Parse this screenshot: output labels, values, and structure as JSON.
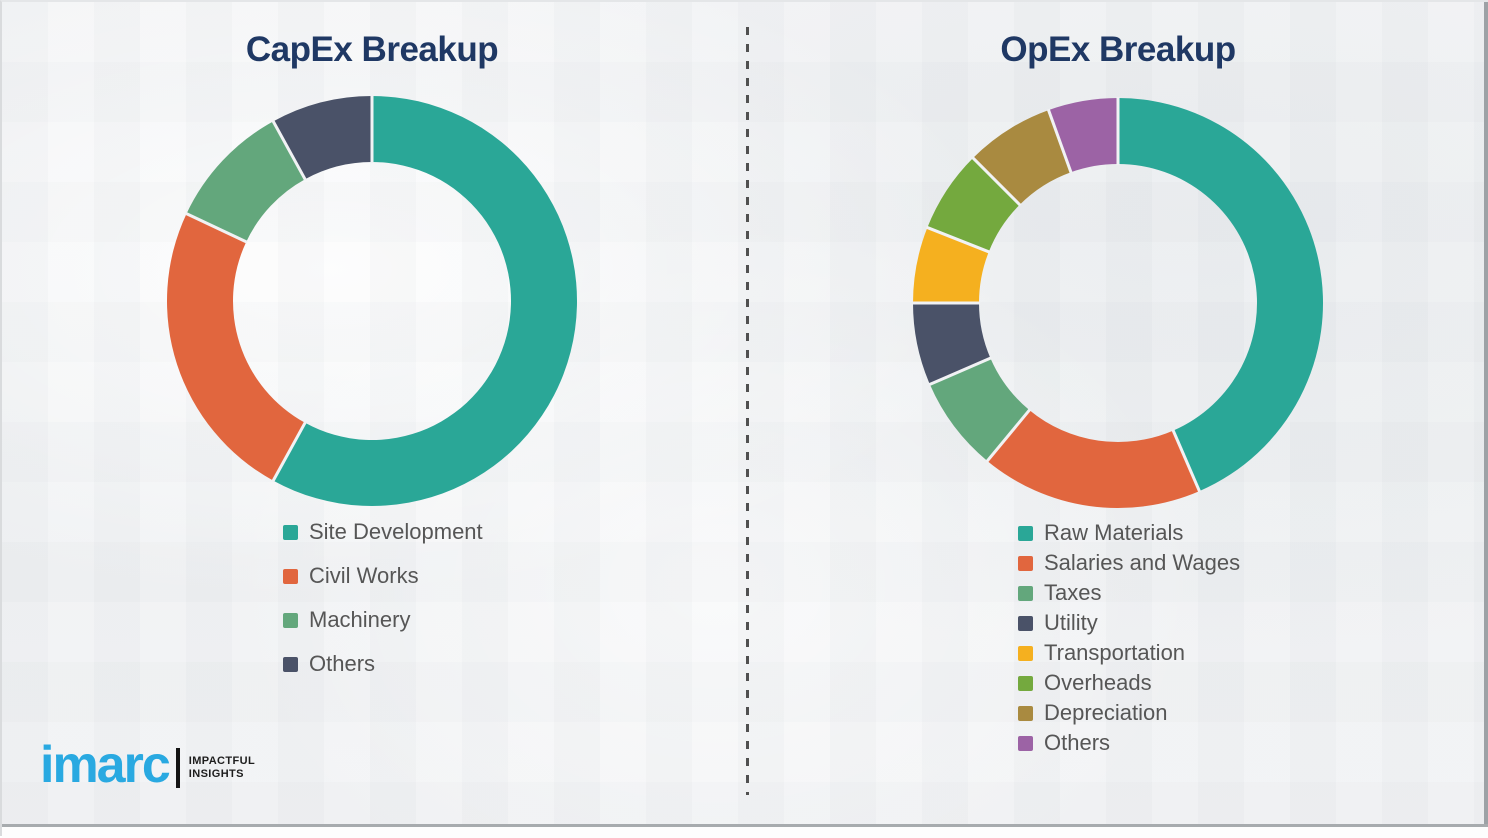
{
  "chart_data": [
    {
      "type": "pie",
      "subtype": "donut",
      "title": "CapEx Breakup",
      "categories": [
        "Site Development",
        "Civil Works",
        "Machinery",
        "Others"
      ],
      "values": [
        58,
        24,
        10,
        8
      ],
      "colors": [
        "#2aa797",
        "#e1663e",
        "#63a77c",
        "#4a5268"
      ],
      "start_angle_deg": 0,
      "direction": "clockwise",
      "legend_position": "below-left"
    },
    {
      "type": "pie",
      "subtype": "donut",
      "title": "OpEx Breakup",
      "categories": [
        "Raw Materials",
        "Salaries and Wages",
        "Taxes",
        "Utility",
        "Transportation",
        "Overheads",
        "Depreciation",
        "Others"
      ],
      "values": [
        43.5,
        17.5,
        7.5,
        6.5,
        6,
        6.5,
        7,
        5.5
      ],
      "colors": [
        "#2aa797",
        "#e1663e",
        "#63a77c",
        "#4a5268",
        "#f5b01f",
        "#74a93e",
        "#a98a40",
        "#9c63a5"
      ],
      "start_angle_deg": 0,
      "direction": "clockwise",
      "legend_position": "below-left"
    }
  ],
  "logo": {
    "wordmark": "imarc",
    "tagline_1": "IMPACTFUL",
    "tagline_2": "INSIGHTS"
  },
  "colors": {
    "title_text": "#1f3864",
    "legend_text": "#565656",
    "logo_blue": "#29a9e1",
    "logo_black": "#141414",
    "divider_dash": "#505050",
    "background": "#eff1f3",
    "slice_gap": "#f1f2f4"
  }
}
